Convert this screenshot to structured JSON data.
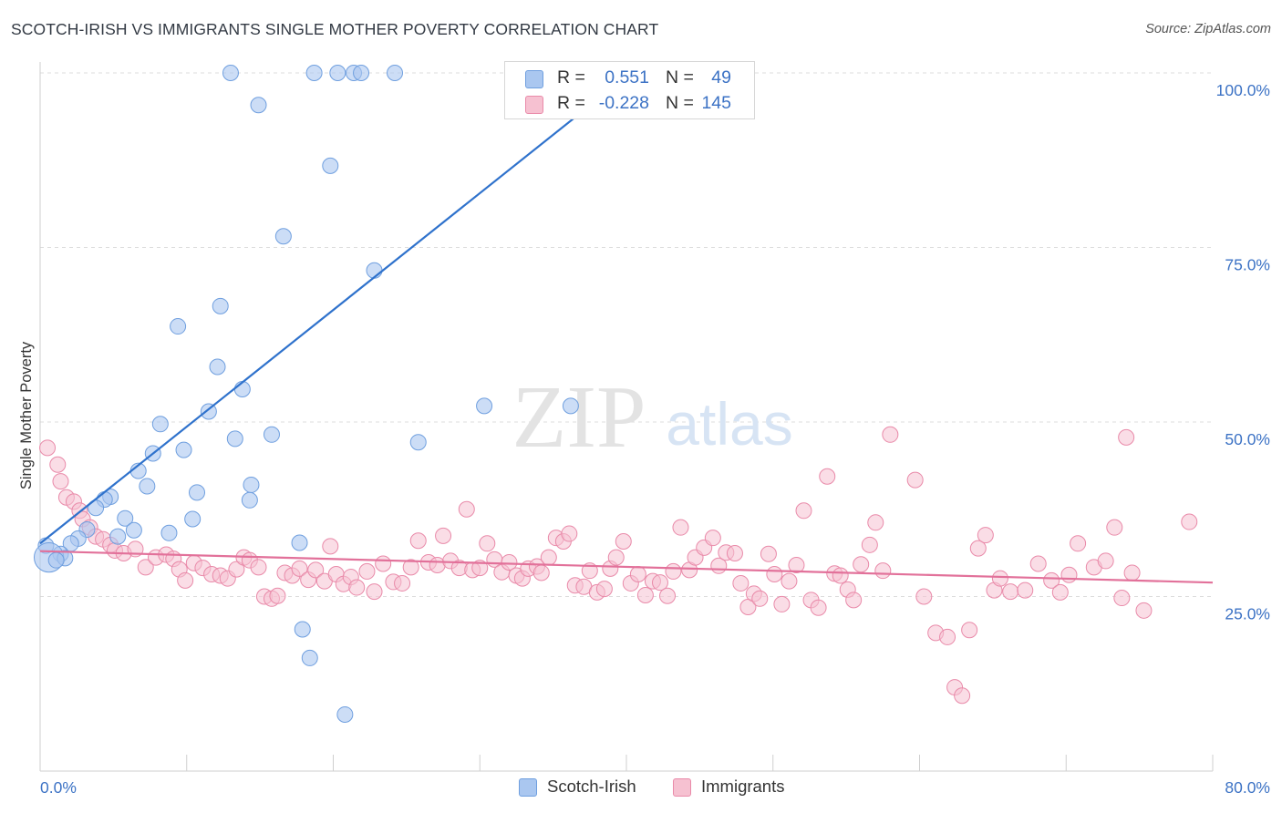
{
  "header": {
    "title": "SCOTCH-IRISH VS IMMIGRANTS SINGLE MOTHER POVERTY CORRELATION CHART",
    "source": "Source: ZipAtlas.com"
  },
  "legend": {
    "r_label": "R =",
    "n_label": "N =",
    "series1": {
      "r": "0.551",
      "n": "49"
    },
    "series2": {
      "r": "-0.228",
      "n": "145"
    }
  },
  "bottom_legend": {
    "series1": "Scotch-Irish",
    "series2": "Immigrants"
  },
  "watermark": {
    "zip": "ZIP",
    "atlas": "atlas"
  },
  "colors": {
    "blue_fill": "#aac7f0",
    "blue_stroke": "#6f9fdf",
    "blue_line": "#2f72cc",
    "pink_fill": "#f6c1d1",
    "pink_stroke": "#e98aa9",
    "pink_line": "#e2719a",
    "tick_label": "#3d73c5",
    "grid": "#dcdcdc"
  },
  "chart_data": {
    "type": "scatter",
    "title": "SCOTCH-IRISH VS IMMIGRANTS SINGLE MOTHER POVERTY CORRELATION CHART",
    "xlabel": "",
    "ylabel": "Single Mother Poverty",
    "xlim": [
      0,
      80
    ],
    "ylim": [
      0,
      105
    ],
    "x_tick_labels": [
      "0.0%",
      "80.0%"
    ],
    "y_ticks": [
      25,
      50,
      75,
      100
    ],
    "y_tick_labels": [
      "25.0%",
      "50.0%",
      "75.0%",
      "100.0%"
    ],
    "grid": true,
    "legend_position": "top-center",
    "series": [
      {
        "name": "Scotch-Irish",
        "r": 0.551,
        "n": 49,
        "trend": {
          "x": [
            0,
            40.3
          ],
          "y": [
            32.6,
            100.0
          ]
        },
        "points": [
          [
            13.0,
            100.0
          ],
          [
            18.7,
            100.0
          ],
          [
            20.3,
            100.0
          ],
          [
            21.4,
            100.0
          ],
          [
            21.9,
            100.0
          ],
          [
            24.2,
            100.0
          ],
          [
            38.3,
            100.0
          ],
          [
            14.9,
            95.4
          ],
          [
            19.8,
            86.7
          ],
          [
            16.6,
            76.6
          ],
          [
            22.8,
            71.7
          ],
          [
            12.3,
            66.6
          ],
          [
            9.4,
            63.7
          ],
          [
            12.1,
            57.9
          ],
          [
            13.8,
            54.7
          ],
          [
            30.3,
            52.3
          ],
          [
            36.2,
            52.3
          ],
          [
            11.5,
            51.5
          ],
          [
            8.2,
            49.7
          ],
          [
            13.3,
            47.6
          ],
          [
            15.8,
            48.2
          ],
          [
            25.8,
            47.1
          ],
          [
            9.8,
            46.0
          ],
          [
            7.7,
            45.5
          ],
          [
            6.7,
            43.0
          ],
          [
            14.4,
            41.0
          ],
          [
            7.3,
            40.8
          ],
          [
            10.7,
            39.9
          ],
          [
            4.8,
            39.3
          ],
          [
            4.4,
            38.9
          ],
          [
            3.8,
            37.7
          ],
          [
            14.3,
            38.8
          ],
          [
            5.8,
            36.2
          ],
          [
            10.4,
            36.1
          ],
          [
            3.2,
            34.6
          ],
          [
            6.4,
            34.5
          ],
          [
            8.8,
            34.1
          ],
          [
            5.3,
            33.6
          ],
          [
            2.6,
            33.3
          ],
          [
            17.7,
            32.7
          ],
          [
            2.1,
            32.6
          ],
          [
            0.4,
            32.3
          ],
          [
            1.4,
            31.1
          ],
          [
            0.6,
            30.6
          ],
          [
            1.7,
            30.5
          ],
          [
            1.1,
            30.2
          ],
          [
            17.9,
            20.3
          ],
          [
            18.4,
            16.2
          ],
          [
            20.8,
            8.1
          ]
        ],
        "sizes": [
          1,
          1,
          1,
          1,
          1,
          1,
          1,
          1,
          1,
          1,
          1,
          1,
          1,
          1,
          1,
          1,
          1,
          1,
          1,
          1,
          1,
          1,
          1,
          1,
          1,
          1,
          1,
          1,
          1,
          1,
          1,
          1,
          1,
          1,
          1,
          1,
          1,
          1,
          1,
          1,
          1,
          1,
          1,
          1.9,
          1,
          1,
          1,
          1,
          1
        ]
      },
      {
        "name": "Immigrants",
        "r": -0.228,
        "n": 145,
        "trend": {
          "x": [
            0,
            80
          ],
          "y": [
            31.5,
            27.0
          ]
        },
        "points": [
          [
            0.5,
            46.3
          ],
          [
            1.2,
            43.9
          ],
          [
            1.4,
            41.5
          ],
          [
            1.8,
            39.2
          ],
          [
            2.3,
            38.6
          ],
          [
            2.7,
            37.3
          ],
          [
            2.9,
            36.1
          ],
          [
            3.4,
            34.9
          ],
          [
            3.8,
            33.6
          ],
          [
            4.3,
            33.2
          ],
          [
            4.8,
            32.4
          ],
          [
            5.1,
            31.6
          ],
          [
            5.7,
            31.2
          ],
          [
            6.5,
            31.8
          ],
          [
            7.2,
            29.2
          ],
          [
            7.9,
            30.6
          ],
          [
            8.6,
            31.0
          ],
          [
            9.1,
            30.4
          ],
          [
            9.5,
            28.9
          ],
          [
            9.9,
            27.3
          ],
          [
            10.5,
            29.8
          ],
          [
            11.1,
            29.1
          ],
          [
            11.7,
            28.2
          ],
          [
            12.3,
            28.0
          ],
          [
            12.8,
            27.6
          ],
          [
            13.4,
            28.9
          ],
          [
            13.9,
            30.6
          ],
          [
            14.3,
            30.2
          ],
          [
            14.9,
            29.2
          ],
          [
            15.3,
            25.0
          ],
          [
            15.8,
            24.7
          ],
          [
            16.2,
            25.1
          ],
          [
            16.7,
            28.4
          ],
          [
            17.2,
            28.0
          ],
          [
            17.7,
            29.0
          ],
          [
            18.3,
            27.4
          ],
          [
            18.8,
            28.8
          ],
          [
            19.4,
            27.2
          ],
          [
            19.8,
            32.2
          ],
          [
            20.2,
            28.2
          ],
          [
            20.7,
            26.8
          ],
          [
            21.2,
            27.8
          ],
          [
            21.6,
            26.3
          ],
          [
            22.3,
            28.6
          ],
          [
            22.8,
            25.7
          ],
          [
            23.4,
            29.7
          ],
          [
            24.1,
            27.1
          ],
          [
            24.7,
            26.9
          ],
          [
            25.3,
            29.2
          ],
          [
            25.8,
            33.0
          ],
          [
            26.5,
            29.9
          ],
          [
            27.1,
            29.5
          ],
          [
            27.5,
            33.7
          ],
          [
            28.0,
            30.1
          ],
          [
            28.6,
            29.1
          ],
          [
            29.1,
            37.5
          ],
          [
            29.5,
            28.8
          ],
          [
            30.0,
            29.1
          ],
          [
            30.5,
            32.6
          ],
          [
            31.0,
            30.3
          ],
          [
            31.5,
            28.5
          ],
          [
            32.0,
            29.9
          ],
          [
            32.5,
            28.0
          ],
          [
            32.9,
            27.6
          ],
          [
            33.3,
            29.0
          ],
          [
            33.9,
            29.3
          ],
          [
            34.2,
            28.4
          ],
          [
            34.7,
            30.6
          ],
          [
            35.2,
            33.4
          ],
          [
            35.7,
            32.9
          ],
          [
            36.1,
            34.0
          ],
          [
            36.5,
            26.6
          ],
          [
            37.1,
            26.4
          ],
          [
            37.5,
            28.7
          ],
          [
            38.0,
            25.6
          ],
          [
            38.5,
            26.1
          ],
          [
            38.9,
            29.0
          ],
          [
            39.3,
            30.6
          ],
          [
            39.8,
            32.9
          ],
          [
            40.3,
            26.9
          ],
          [
            40.8,
            28.2
          ],
          [
            41.3,
            25.2
          ],
          [
            41.8,
            27.2
          ],
          [
            42.3,
            27.0
          ],
          [
            42.8,
            25.1
          ],
          [
            43.2,
            28.6
          ],
          [
            43.7,
            34.9
          ],
          [
            44.3,
            28.8
          ],
          [
            44.7,
            30.6
          ],
          [
            45.3,
            32.0
          ],
          [
            45.9,
            33.4
          ],
          [
            46.3,
            29.4
          ],
          [
            46.8,
            31.3
          ],
          [
            47.4,
            31.2
          ],
          [
            47.8,
            26.9
          ],
          [
            48.3,
            23.5
          ],
          [
            48.7,
            25.4
          ],
          [
            49.1,
            24.7
          ],
          [
            49.7,
            31.1
          ],
          [
            50.1,
            28.2
          ],
          [
            50.6,
            23.9
          ],
          [
            51.1,
            27.2
          ],
          [
            51.6,
            29.5
          ],
          [
            52.1,
            37.3
          ],
          [
            52.6,
            24.5
          ],
          [
            53.1,
            23.4
          ],
          [
            53.7,
            42.2
          ],
          [
            54.2,
            28.3
          ],
          [
            54.6,
            28.0
          ],
          [
            55.1,
            26.0
          ],
          [
            55.5,
            24.5
          ],
          [
            56.0,
            29.6
          ],
          [
            56.6,
            32.4
          ],
          [
            57.0,
            35.6
          ],
          [
            57.5,
            28.7
          ],
          [
            58.0,
            48.2
          ],
          [
            59.7,
            41.7
          ],
          [
            60.3,
            25.0
          ],
          [
            61.1,
            19.8
          ],
          [
            61.9,
            19.2
          ],
          [
            62.4,
            12.0
          ],
          [
            62.9,
            10.8
          ],
          [
            63.4,
            20.2
          ],
          [
            64.0,
            31.9
          ],
          [
            64.5,
            33.8
          ],
          [
            65.1,
            25.9
          ],
          [
            65.5,
            27.6
          ],
          [
            66.2,
            25.7
          ],
          [
            67.2,
            25.9
          ],
          [
            68.1,
            29.7
          ],
          [
            69.0,
            27.3
          ],
          [
            69.6,
            25.6
          ],
          [
            70.2,
            28.1
          ],
          [
            70.8,
            32.6
          ],
          [
            71.9,
            29.2
          ],
          [
            72.7,
            30.1
          ],
          [
            73.3,
            34.9
          ],
          [
            73.8,
            24.8
          ],
          [
            74.1,
            47.8
          ],
          [
            74.5,
            28.4
          ],
          [
            75.3,
            23.0
          ],
          [
            78.4,
            35.7
          ]
        ]
      }
    ]
  }
}
